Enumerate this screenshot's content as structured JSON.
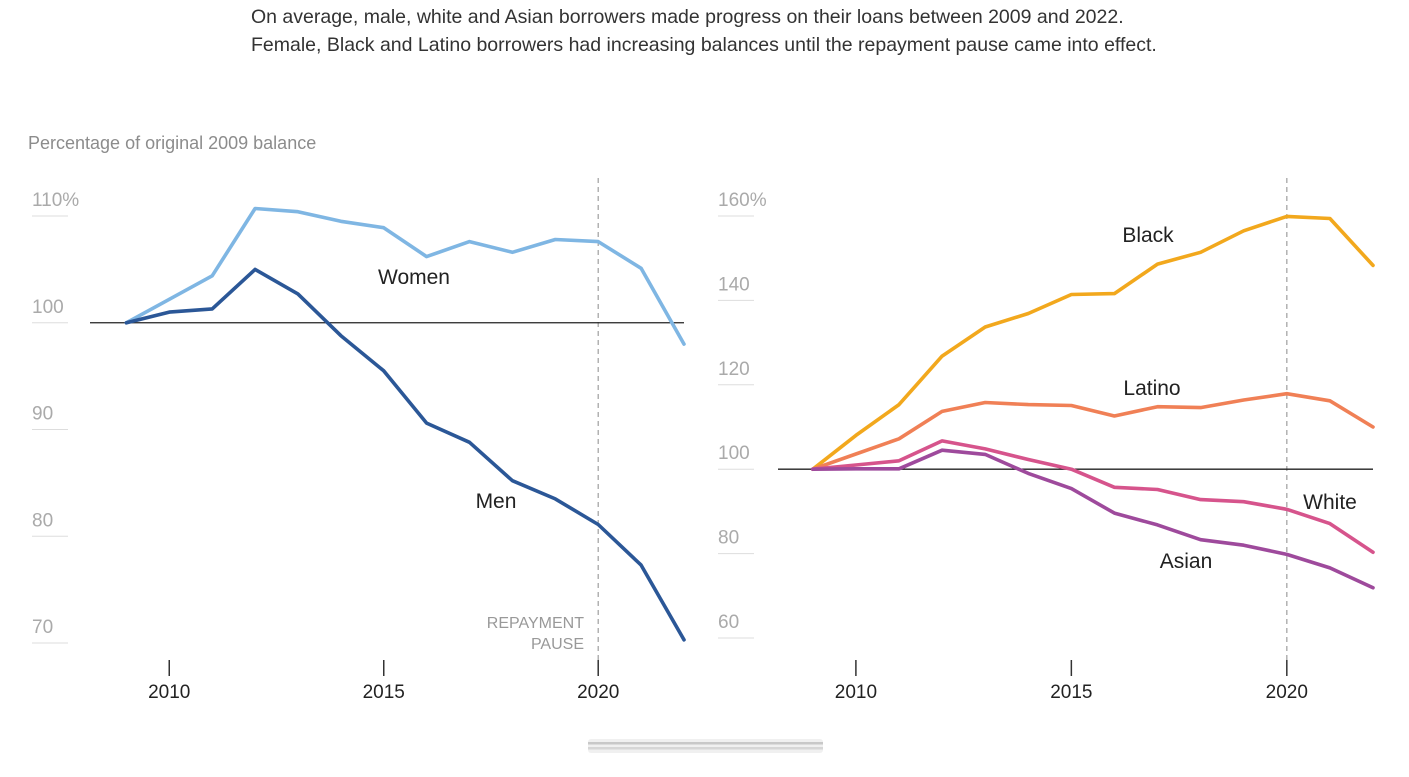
{
  "caption": "On average, male, white and Asian borrowers made progress on their loans between 2009 and 2022. Female, Black and Latino borrowers had increasing balances until the repayment pause came into effect.",
  "chart_data": [
    {
      "type": "line",
      "ylabel": "Percentage of original 2009 balance",
      "xlim": [
        2006.8,
        2022
      ],
      "ylim": [
        68,
        112
      ],
      "yticks": [
        70,
        80,
        90,
        100,
        110
      ],
      "ytick_labels": [
        "70",
        "80",
        "90",
        "100",
        "110%"
      ],
      "xticks": [
        2010,
        2015,
        2020
      ],
      "xtick_labels": [
        "2010",
        "2015",
        "2020"
      ],
      "baseline": 100,
      "annotation": {
        "x": 2020,
        "lines": [
          "REPAYMENT",
          "PAUSE"
        ]
      },
      "x": [
        2009,
        2010,
        2011,
        2012,
        2013,
        2014,
        2015,
        2016,
        2017,
        2018,
        2019,
        2020,
        2021,
        2022
      ],
      "series": [
        {
          "name": "Women",
          "color": "#7fb6e3",
          "values": [
            100,
            102.2,
            104.4,
            110.7,
            110.4,
            109.5,
            108.9,
            106.2,
            107.6,
            106.6,
            107.8,
            107.6,
            105.1,
            98.0
          ]
        },
        {
          "name": "Men",
          "color": "#2b5797",
          "values": [
            100,
            101.0,
            101.3,
            105.0,
            102.7,
            98.8,
            95.5,
            90.6,
            88.8,
            85.2,
            83.5,
            81.1,
            77.3,
            70.3
          ]
        }
      ]
    },
    {
      "type": "line",
      "xlim": [
        2006.8,
        2022
      ],
      "ylim": [
        54,
        164
      ],
      "yticks": [
        60,
        80,
        100,
        120,
        140,
        160
      ],
      "ytick_labels": [
        "60",
        "80",
        "100",
        "120",
        "140",
        "160%"
      ],
      "xticks": [
        2010,
        2015,
        2020
      ],
      "xtick_labels": [
        "2010",
        "2015",
        "2020"
      ],
      "baseline": 100,
      "annotation_x": 2020,
      "x": [
        2009,
        2010,
        2011,
        2012,
        2013,
        2014,
        2015,
        2016,
        2017,
        2018,
        2019,
        2020,
        2021,
        2022
      ],
      "series": [
        {
          "name": "Black",
          "color": "#f2a81d",
          "values": [
            100,
            108,
            115.3,
            126.8,
            133.7,
            136.9,
            141.4,
            141.6,
            148.6,
            151.4,
            156.5,
            159.9,
            159.4,
            148.3
          ]
        },
        {
          "name": "Latino",
          "color": "#f08056",
          "values": [
            100,
            103.6,
            107.2,
            113.7,
            115.8,
            115.3,
            115.1,
            112.6,
            114.8,
            114.6,
            116.4,
            117.9,
            116.2,
            110.0
          ]
        },
        {
          "name": "White",
          "color": "#d6548c",
          "values": [
            100,
            101,
            102.0,
            106.7,
            104.8,
            102.3,
            100,
            95.7,
            95.2,
            92.8,
            92.3,
            90.5,
            87.1,
            80.3
          ]
        },
        {
          "name": "Asian",
          "color": "#9e4a9c",
          "values": [
            100,
            100.1,
            100.1,
            104.5,
            103.5,
            99.0,
            95.4,
            89.6,
            86.8,
            83.3,
            82.0,
            79.8,
            76.6,
            71.9
          ]
        }
      ]
    }
  ]
}
